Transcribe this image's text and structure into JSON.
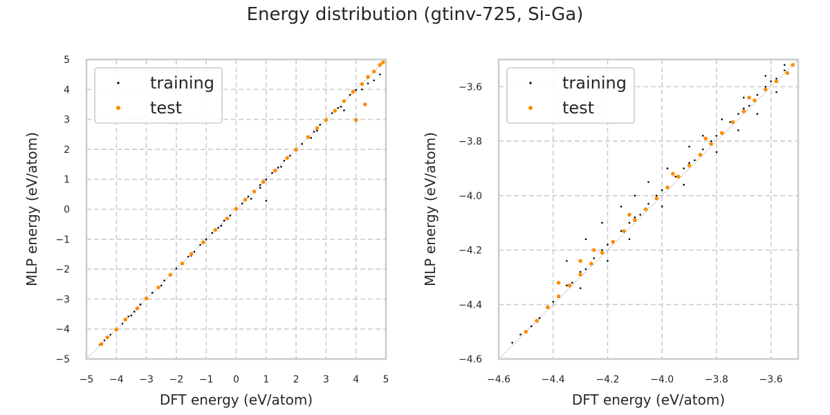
{
  "figure": {
    "title": "Energy distribution (gtinv-725, Si-Ga)"
  },
  "colors": {
    "training": "#000000",
    "test": "#ff8c00",
    "grid": "#cccccc",
    "axis": "#cccccc",
    "text": "#262626",
    "diagonal": "#999999"
  },
  "chart_data": [
    {
      "type": "scatter",
      "xlabel": "DFT energy (eV/atom)",
      "ylabel": "MLP energy (eV/atom)",
      "xlim": [
        -5,
        5
      ],
      "ylim": [
        -5,
        5
      ],
      "xticks": [
        -5,
        -4,
        -3,
        -2,
        -1,
        0,
        1,
        2,
        3,
        4,
        5
      ],
      "yticks": [
        -5,
        -4,
        -3,
        -2,
        -1,
        0,
        1,
        2,
        3,
        4,
        5
      ],
      "xtick_labels": [
        "−5",
        "−4",
        "−3",
        "−2",
        "−1",
        "0",
        "1",
        "2",
        "3",
        "4",
        "5"
      ],
      "ytick_labels": [
        "−5",
        "−4",
        "−3",
        "−2",
        "−1",
        "0",
        "1",
        "2",
        "3",
        "4",
        "5"
      ],
      "grid": true,
      "legend_position": "top-left",
      "diagonal": true,
      "series": [
        {
          "name": "training",
          "color": "#000000",
          "x": [
            -4.55,
            -4.4,
            -4.2,
            -4.0,
            -3.8,
            -3.6,
            -3.4,
            -3.2,
            -3.0,
            -2.8,
            -2.6,
            -2.4,
            -2.2,
            -2.0,
            -1.8,
            -1.6,
            -1.4,
            -1.2,
            -1.0,
            -0.8,
            -0.6,
            -0.4,
            -0.2,
            0.0,
            0.2,
            0.4,
            0.6,
            0.8,
            1.0,
            1.2,
            1.4,
            1.6,
            1.8,
            2.0,
            2.2,
            2.4,
            2.6,
            2.8,
            3.0,
            3.2,
            3.4,
            3.6,
            3.8,
            4.0,
            4.2,
            4.4,
            4.6,
            4.8,
            4.9,
            -3.5,
            -2.5,
            -1.5,
            -0.5,
            0.5,
            0.8,
            1.0,
            1.5,
            2.5,
            2.7,
            3.5,
            4.4,
            4.6,
            4.8,
            3.6,
            4.2
          ],
          "y": [
            -4.52,
            -4.38,
            -4.19,
            -3.99,
            -3.82,
            -3.58,
            -3.42,
            -3.18,
            -3.01,
            -2.79,
            -2.62,
            -2.38,
            -2.21,
            -1.98,
            -1.82,
            -1.58,
            -1.42,
            -1.19,
            -1.01,
            -0.79,
            -0.62,
            -0.38,
            -0.21,
            0.02,
            0.19,
            0.42,
            0.58,
            0.81,
            0.99,
            1.21,
            1.39,
            1.62,
            1.79,
            2.02,
            2.18,
            2.41,
            2.59,
            2.82,
            2.98,
            3.21,
            3.38,
            3.59,
            3.82,
            3.98,
            4.21,
            4.38,
            4.62,
            4.79,
            4.92,
            -3.55,
            -2.55,
            -1.55,
            -0.55,
            0.35,
            0.72,
            0.28,
            1.42,
            2.38,
            2.62,
            3.42,
            4.2,
            4.3,
            4.5,
            3.3,
            4.0
          ]
        },
        {
          "name": "test",
          "color": "#ff8c00",
          "x": [
            -4.5,
            -4.3,
            -4.0,
            -3.7,
            -3.3,
            -3.0,
            -2.6,
            -2.2,
            -1.8,
            -1.5,
            -1.1,
            -0.7,
            -0.3,
            0.0,
            0.3,
            0.6,
            0.9,
            1.3,
            1.7,
            2.0,
            2.4,
            2.7,
            3.0,
            3.3,
            3.6,
            3.9,
            4.2,
            4.4,
            4.6,
            4.8,
            4.9,
            4.0,
            4.3
          ],
          "y": [
            -4.5,
            -4.28,
            -4.02,
            -3.68,
            -3.31,
            -2.98,
            -2.61,
            -2.19,
            -1.81,
            -1.49,
            -1.11,
            -0.69,
            -0.31,
            0.01,
            0.32,
            0.59,
            0.91,
            1.29,
            1.71,
            1.99,
            2.41,
            2.71,
            2.98,
            3.29,
            3.61,
            3.92,
            4.18,
            4.42,
            4.6,
            4.82,
            4.9,
            2.98,
            3.5
          ]
        }
      ]
    },
    {
      "type": "scatter",
      "xlabel": "DFT energy (eV/atom)",
      "ylabel": "MLP energy (eV/atom)",
      "xlim": [
        -4.6,
        -3.5
      ],
      "ylim": [
        -4.6,
        -3.5
      ],
      "xticks": [
        -4.6,
        -4.4,
        -4.2,
        -4.0,
        -3.8,
        -3.6
      ],
      "yticks": [
        -4.6,
        -4.4,
        -4.2,
        -4.0,
        -3.8,
        -3.6
      ],
      "xtick_labels": [
        "−4.6",
        "−4.4",
        "−4.2",
        "−4.0",
        "−3.8",
        "−3.6"
      ],
      "ytick_labels": [
        "−4.6",
        "−4.4",
        "−4.2",
        "−4.0",
        "−3.8",
        "−3.6"
      ],
      "grid": true,
      "legend_position": "top-left",
      "diagonal": true,
      "series": [
        {
          "name": "training",
          "color": "#000000",
          "x": [
            -4.55,
            -4.52,
            -4.48,
            -4.45,
            -4.42,
            -4.4,
            -4.38,
            -4.35,
            -4.33,
            -4.3,
            -4.28,
            -4.25,
            -4.22,
            -4.2,
            -4.18,
            -4.15,
            -4.12,
            -4.1,
            -4.08,
            -4.05,
            -4.02,
            -4.0,
            -3.98,
            -3.95,
            -3.92,
            -3.9,
            -3.88,
            -3.85,
            -3.82,
            -3.8,
            -3.78,
            -3.75,
            -3.72,
            -3.7,
            -3.68,
            -3.65,
            -3.62,
            -3.6,
            -3.58,
            -3.55,
            -3.52,
            -4.35,
            -4.28,
            -4.22,
            -4.15,
            -4.1,
            -4.05,
            -3.98,
            -3.9,
            -3.85,
            -3.78,
            -3.7,
            -3.62,
            -3.55,
            -4.3,
            -4.2,
            -4.12,
            -4.0,
            -3.92,
            -3.8,
            -3.72,
            -3.65,
            -3.58
          ],
          "y": [
            -4.54,
            -4.51,
            -4.48,
            -4.45,
            -4.41,
            -4.39,
            -4.37,
            -4.33,
            -4.32,
            -4.28,
            -4.27,
            -4.23,
            -4.2,
            -4.18,
            -4.17,
            -4.13,
            -4.1,
            -4.08,
            -4.07,
            -4.03,
            -4.0,
            -3.98,
            -3.97,
            -3.93,
            -3.9,
            -3.88,
            -3.87,
            -3.83,
            -3.8,
            -3.78,
            -3.77,
            -3.73,
            -3.7,
            -3.68,
            -3.67,
            -3.63,
            -3.6,
            -3.58,
            -3.57,
            -3.54,
            -3.52,
            -4.24,
            -4.16,
            -4.1,
            -4.04,
            -4.0,
            -3.95,
            -3.9,
            -3.82,
            -3.78,
            -3.72,
            -3.64,
            -3.56,
            -3.52,
            -4.34,
            -4.24,
            -4.16,
            -4.04,
            -3.96,
            -3.84,
            -3.76,
            -3.7,
            -3.62
          ]
        },
        {
          "name": "test",
          "color": "#ff8c00",
          "x": [
            -4.5,
            -4.46,
            -4.42,
            -4.38,
            -4.34,
            -4.3,
            -4.26,
            -4.22,
            -4.18,
            -4.14,
            -4.1,
            -4.06,
            -4.02,
            -3.98,
            -3.94,
            -3.9,
            -3.86,
            -3.82,
            -3.78,
            -3.74,
            -3.7,
            -3.66,
            -3.62,
            -3.58,
            -3.54,
            -3.52,
            -4.38,
            -4.3,
            -4.25,
            -4.12,
            -3.96,
            -3.84,
            -3.68
          ],
          "y": [
            -4.5,
            -4.46,
            -4.41,
            -4.37,
            -4.33,
            -4.29,
            -4.25,
            -4.21,
            -4.17,
            -4.13,
            -4.09,
            -4.05,
            -4.01,
            -3.97,
            -3.93,
            -3.89,
            -3.85,
            -3.81,
            -3.77,
            -3.73,
            -3.69,
            -3.65,
            -3.61,
            -3.58,
            -3.55,
            -3.52,
            -4.32,
            -4.24,
            -4.2,
            -4.07,
            -3.92,
            -3.79,
            -3.64
          ]
        }
      ]
    }
  ]
}
